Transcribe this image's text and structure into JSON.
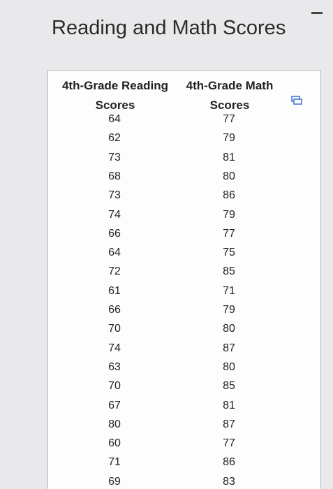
{
  "title": "Reading and Math Scores",
  "table": {
    "header": [
      "4th-Grade Reading Scores",
      "4th-Grade Math Scores"
    ],
    "rows": [
      [
        64,
        77
      ],
      [
        62,
        79
      ],
      [
        73,
        81
      ],
      [
        68,
        80
      ],
      [
        73,
        86
      ],
      [
        74,
        79
      ],
      [
        66,
        77
      ],
      [
        64,
        75
      ],
      [
        72,
        85
      ],
      [
        61,
        71
      ],
      [
        66,
        79
      ],
      [
        70,
        80
      ],
      [
        74,
        87
      ],
      [
        63,
        80
      ],
      [
        70,
        85
      ],
      [
        67,
        81
      ],
      [
        80,
        87
      ],
      [
        60,
        77
      ],
      [
        71,
        86
      ],
      [
        69,
        83
      ]
    ]
  }
}
